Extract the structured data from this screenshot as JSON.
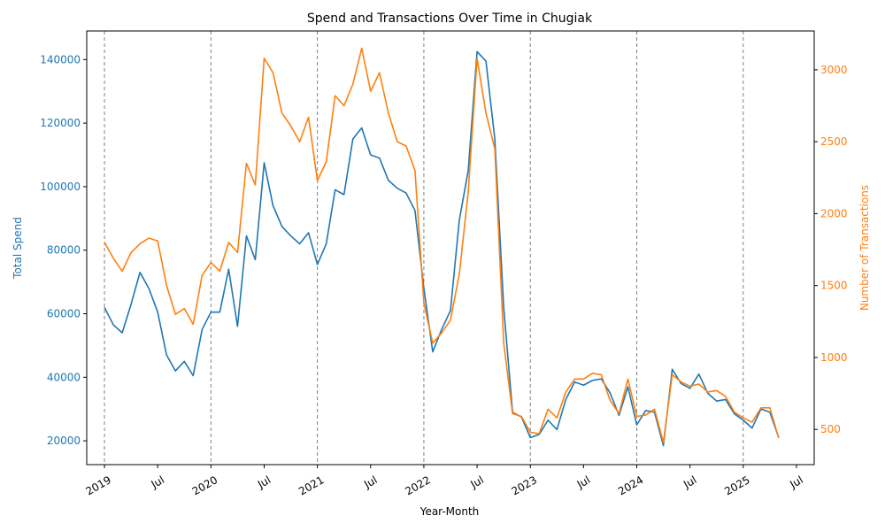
{
  "chart_data": {
    "type": "line",
    "title": "Spend and Transactions Over Time in Chugiak",
    "xlabel": "Year-Month",
    "ylabel_left": "Total Spend",
    "ylabel_right": "Number of Transactions",
    "colors": {
      "spend": "#1f77b4",
      "transactions": "#ff7f0e",
      "year_line": "#808080"
    },
    "x_ticks": [
      "2019",
      "Jul",
      "2020",
      "Jul",
      "2021",
      "Jul",
      "2022",
      "Jul",
      "2023",
      "Jul",
      "2024",
      "Jul",
      "2025",
      "Jul"
    ],
    "x_tick_dates": [
      "2019-01",
      "2019-07",
      "2020-01",
      "2020-07",
      "2021-01",
      "2021-07",
      "2022-01",
      "2022-07",
      "2023-01",
      "2023-07",
      "2024-01",
      "2024-07",
      "2025-01",
      "2025-07"
    ],
    "x_range": [
      "2018-11",
      "2025-09"
    ],
    "ylim_left": [
      12500,
      149000
    ],
    "yticks_left": [
      "20000",
      "40000",
      "60000",
      "80000",
      "100000",
      "120000",
      "140000"
    ],
    "ylim_right": [
      255,
      3270
    ],
    "yticks_right": [
      "500",
      "1000",
      "1500",
      "2000",
      "2500",
      "3000"
    ],
    "year_lines": [
      "2019-01",
      "2020-01",
      "2021-01",
      "2022-01",
      "2023-01",
      "2024-01",
      "2025-01"
    ],
    "x": [
      "2019-01",
      "2019-02",
      "2019-03",
      "2019-04",
      "2019-05",
      "2019-06",
      "2019-07",
      "2019-08",
      "2019-09",
      "2019-10",
      "2019-11",
      "2019-12",
      "2020-01",
      "2020-02",
      "2020-03",
      "2020-04",
      "2020-05",
      "2020-06",
      "2020-07",
      "2020-08",
      "2020-09",
      "2020-10",
      "2020-11",
      "2020-12",
      "2021-01",
      "2021-02",
      "2021-03",
      "2021-04",
      "2021-05",
      "2021-06",
      "2021-07",
      "2021-08",
      "2021-09",
      "2021-10",
      "2021-11",
      "2021-12",
      "2022-01",
      "2022-02",
      "2022-03",
      "2022-04",
      "2022-05",
      "2022-06",
      "2022-07",
      "2022-08",
      "2022-09",
      "2022-10",
      "2022-11",
      "2022-12",
      "2023-01",
      "2023-02",
      "2023-03",
      "2023-04",
      "2023-05",
      "2023-06",
      "2023-07",
      "2023-08",
      "2023-09",
      "2023-10",
      "2023-11",
      "2023-12",
      "2024-01",
      "2024-02",
      "2024-03",
      "2024-04",
      "2024-05",
      "2024-06",
      "2024-07",
      "2024-08",
      "2024-09",
      "2024-10",
      "2024-11",
      "2024-12",
      "2025-01",
      "2025-02",
      "2025-03",
      "2025-04",
      "2025-05"
    ],
    "series": [
      {
        "name": "Total Spend",
        "axis": "left",
        "values": [
          62000,
          56500,
          54000,
          63000,
          73000,
          68000,
          60500,
          47000,
          42000,
          45000,
          40500,
          55000,
          60500,
          60500,
          74000,
          56000,
          84500,
          77000,
          107500,
          94000,
          87500,
          84500,
          82000,
          85500,
          75500,
          82000,
          99000,
          97500,
          115000,
          118500,
          110000,
          109000,
          102000,
          99500,
          98000,
          92500,
          68000,
          48000,
          55000,
          61000,
          89500,
          105000,
          142500,
          139500,
          115000,
          62000,
          29000,
          27500,
          21000,
          22000,
          26500,
          23500,
          33000,
          38500,
          37500,
          39000,
          39500,
          35000,
          28000,
          37000,
          25000,
          29500,
          29000,
          18500,
          42500,
          38000,
          36500,
          41000,
          35000,
          32500,
          33000,
          28500,
          26500,
          24000,
          30000,
          29000,
          21000
        ]
      },
      {
        "name": "Number of Transactions",
        "axis": "right",
        "values": [
          1800,
          1690,
          1600,
          1730,
          1790,
          1830,
          1810,
          1500,
          1300,
          1340,
          1230,
          1570,
          1660,
          1600,
          1800,
          1730,
          2350,
          2200,
          3080,
          2980,
          2700,
          2610,
          2500,
          2670,
          2230,
          2360,
          2820,
          2750,
          2900,
          3150,
          2850,
          2980,
          2700,
          2500,
          2470,
          2300,
          1380,
          1100,
          1170,
          1260,
          1580,
          2150,
          3080,
          2700,
          2450,
          1100,
          610,
          590,
          480,
          470,
          640,
          580,
          760,
          850,
          850,
          890,
          880,
          700,
          610,
          850,
          590,
          600,
          640,
          410,
          880,
          830,
          800,
          815,
          760,
          770,
          730,
          620,
          580,
          550,
          650,
          650,
          440
        ]
      }
    ]
  }
}
